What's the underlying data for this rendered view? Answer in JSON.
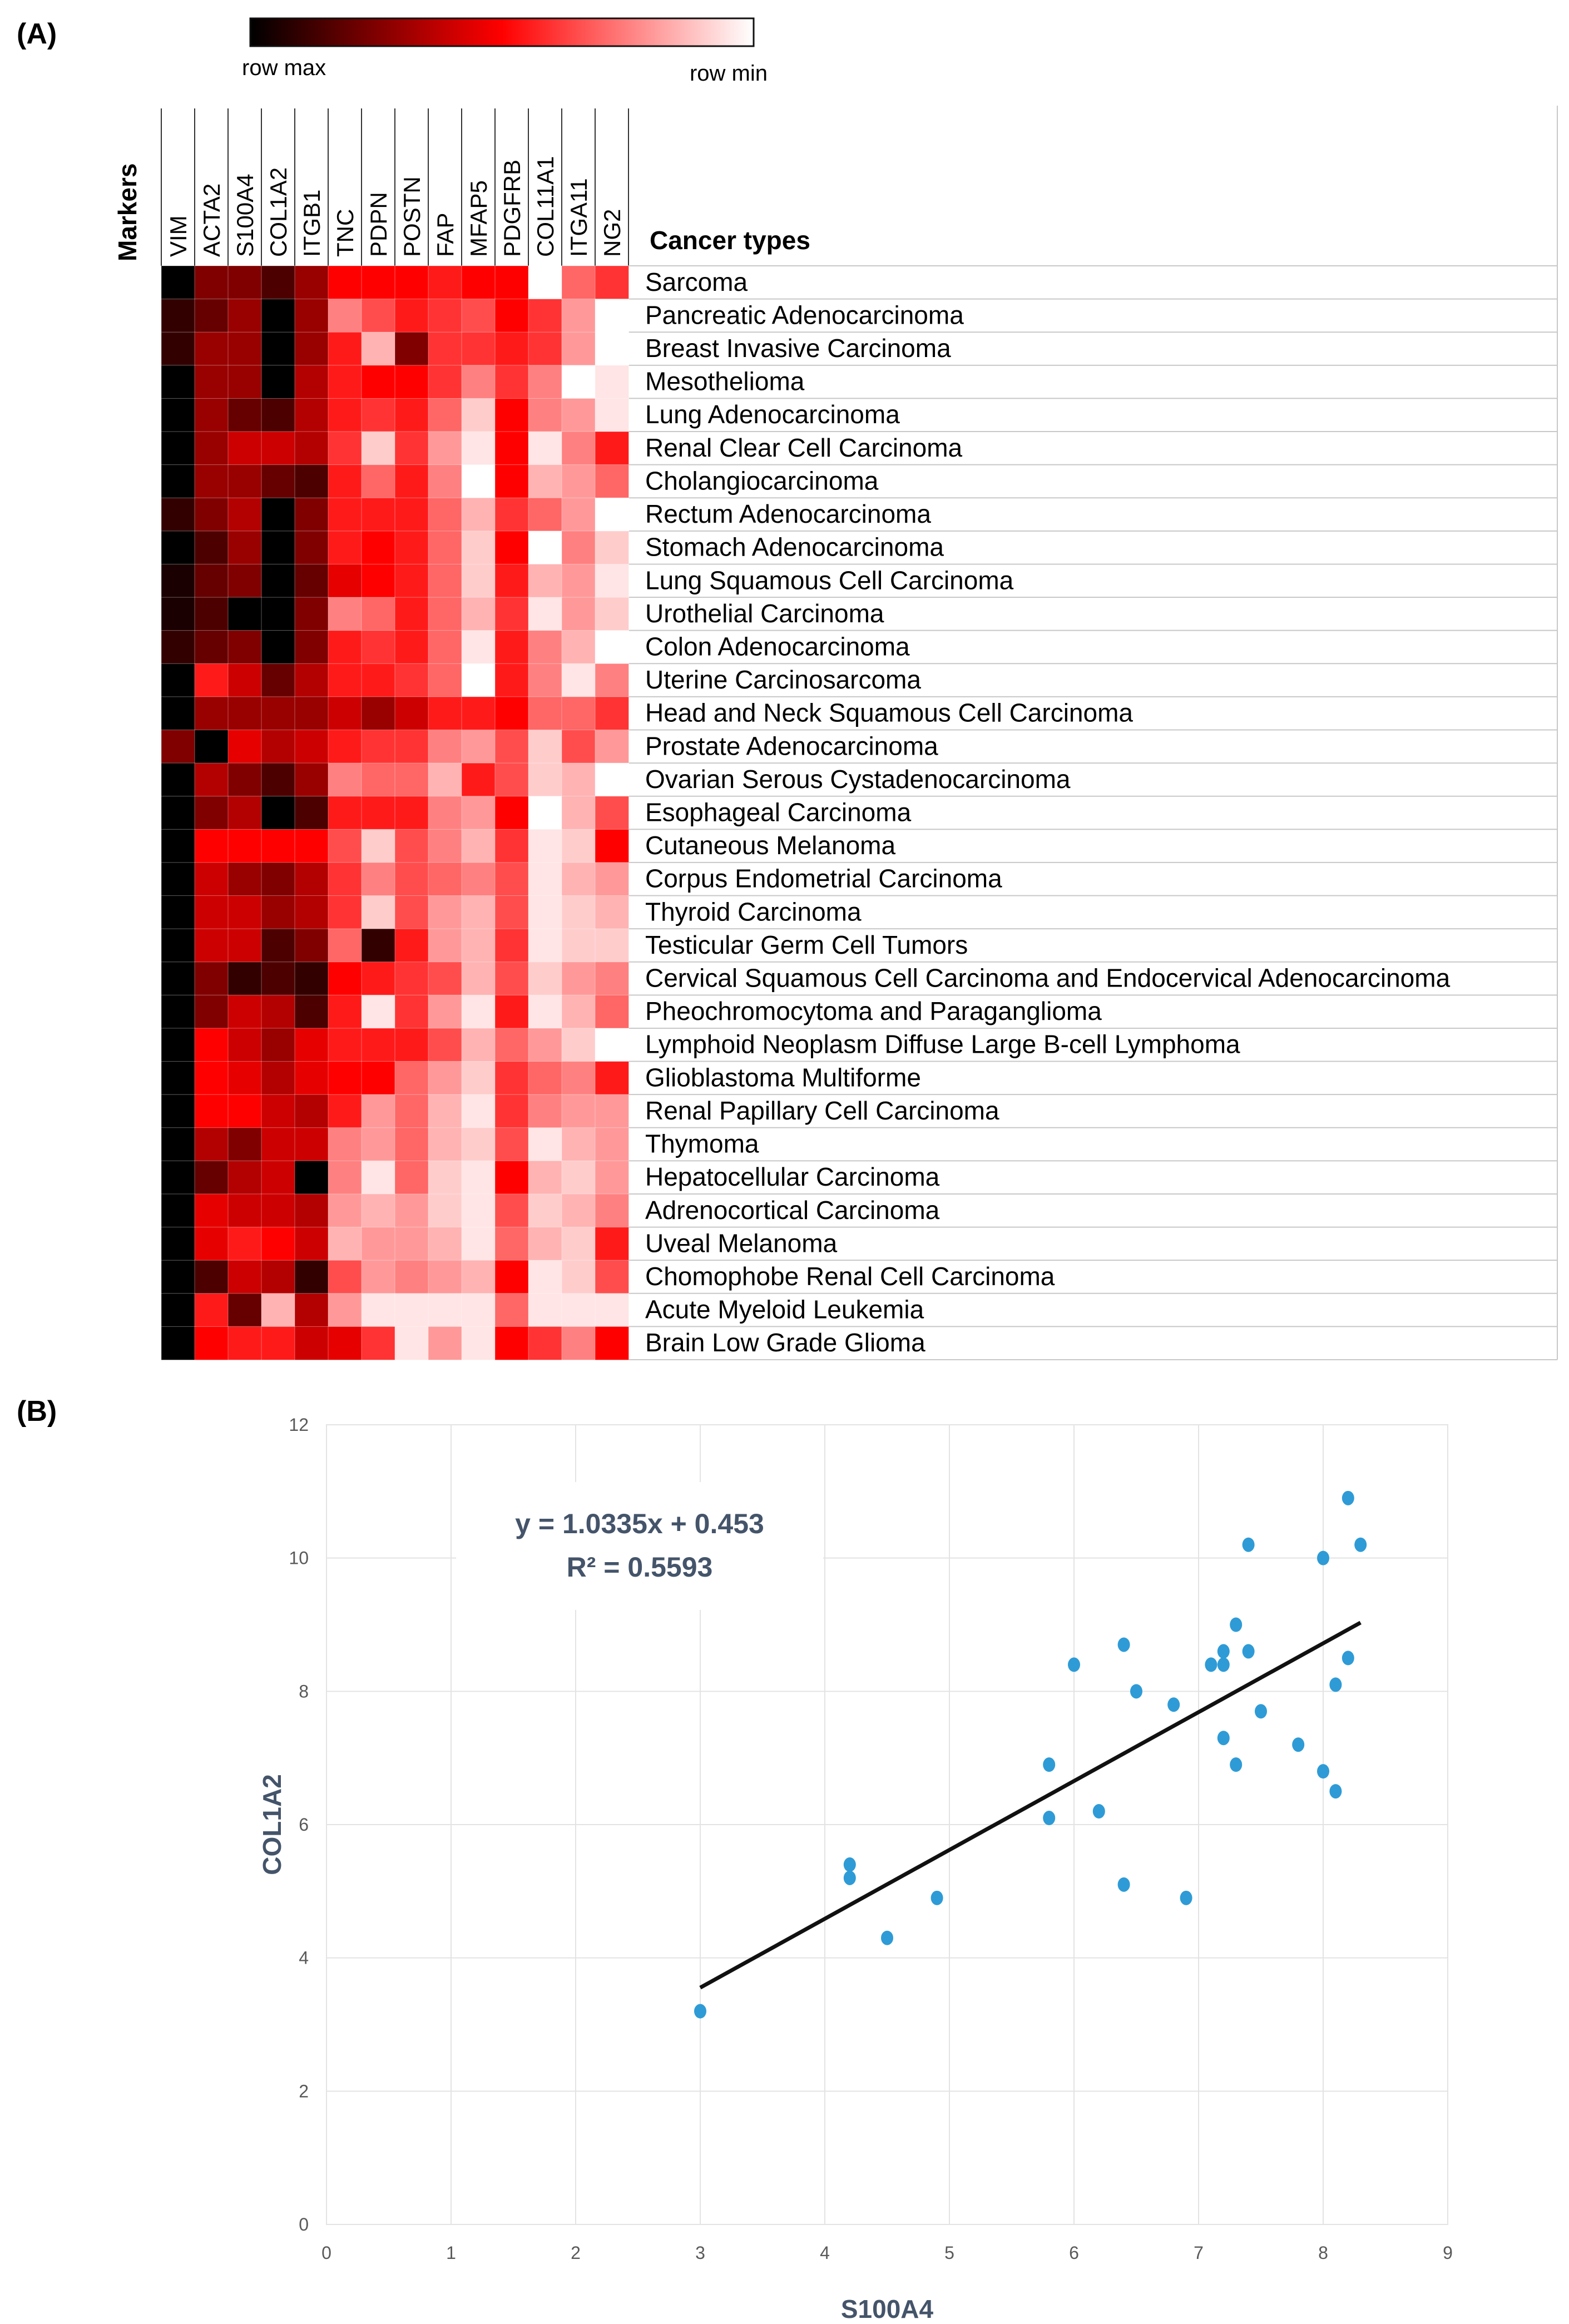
{
  "panel_a": {
    "label": "(A)",
    "colorbar": {
      "max_label": "row max",
      "min_label": "row min",
      "colors": [
        "#000000",
        "#ff0000",
        "#ffffff"
      ]
    },
    "markers_title": "Markers",
    "cancer_types_title": "Cancer types"
  },
  "panel_b": {
    "label": "(B)"
  },
  "chart_data": [
    {
      "type": "heatmap",
      "columns": [
        "VIM",
        "ACTA2",
        "S100A4",
        "COL1A2",
        "ITGB1",
        "TNC",
        "PDPN",
        "POSTN",
        "FAP",
        "MFAP5",
        "PDGFRB",
        "COL11A1",
        "ITGA11",
        "NG2"
      ],
      "rows": [
        "Sarcoma",
        "Pancreatic Adenocarcinoma",
        "Breast Invasive Carcinoma",
        "Mesothelioma",
        "Lung Adenocarcinoma",
        "Renal Clear Cell Carcinoma",
        "Cholangiocarcinoma",
        "Rectum Adenocarcinoma",
        "Stomach Adenocarcinoma",
        "Lung Squamous Cell Carcinoma",
        "Urothelial Carcinoma",
        "Colon Adenocarcinoma",
        "Uterine Carcinosarcoma",
        "Head and Neck Squamous Cell Carcinoma",
        "Prostate Adenocarcinoma",
        "Ovarian Serous Cystadenocarcinoma",
        "Esophageal Carcinoma",
        "Cutaneous Melanoma",
        "Corpus Endometrial Carcinoma",
        "Thyroid Carcinoma",
        "Testicular Germ Cell Tumors",
        "Cervical Squamous Cell Carcinoma and Endocervical Adenocarcinoma",
        "Pheochromocytoma and Paraganglioma",
        "Lymphoid Neoplasm Diffuse Large B-cell Lymphoma",
        "Glioblastoma Multiforme",
        "Renal Papillary Cell Carcinoma",
        "Thymoma",
        "Hepatocellular Carcinoma",
        "Adrenocortical Carcinoma",
        "Uveal Melanoma",
        "Chomophobe Renal Cell Carcinoma",
        "Acute Myeloid Leukemia",
        "Brain Low Grade Glioma"
      ],
      "scale": "row-normalized, 0 = row max (black), 0.5 = red, 1 = row min (white)",
      "values": [
        [
          0.0,
          0.25,
          0.25,
          0.15,
          0.3,
          0.5,
          0.5,
          0.5,
          0.55,
          0.5,
          0.5,
          1.0,
          0.7,
          0.6
        ],
        [
          0.1,
          0.2,
          0.3,
          0.0,
          0.3,
          0.75,
          0.65,
          0.55,
          0.6,
          0.65,
          0.5,
          0.6,
          0.8,
          1.0
        ],
        [
          0.1,
          0.3,
          0.3,
          0.0,
          0.3,
          0.55,
          0.85,
          0.25,
          0.6,
          0.6,
          0.55,
          0.6,
          0.8,
          1.0
        ],
        [
          0.0,
          0.3,
          0.3,
          0.0,
          0.35,
          0.55,
          0.5,
          0.5,
          0.6,
          0.75,
          0.6,
          0.75,
          1.0,
          0.95
        ],
        [
          0.0,
          0.3,
          0.2,
          0.15,
          0.35,
          0.55,
          0.6,
          0.55,
          0.7,
          0.9,
          0.5,
          0.75,
          0.8,
          0.95
        ],
        [
          0.0,
          0.3,
          0.4,
          0.4,
          0.35,
          0.6,
          0.9,
          0.6,
          0.8,
          0.95,
          0.5,
          0.95,
          0.75,
          0.55
        ],
        [
          0.0,
          0.3,
          0.3,
          0.2,
          0.15,
          0.55,
          0.7,
          0.55,
          0.75,
          1.0,
          0.5,
          0.85,
          0.8,
          0.7
        ],
        [
          0.1,
          0.25,
          0.35,
          0.0,
          0.25,
          0.55,
          0.55,
          0.55,
          0.7,
          0.85,
          0.6,
          0.7,
          0.8,
          1.0
        ],
        [
          0.0,
          0.15,
          0.3,
          0.0,
          0.25,
          0.55,
          0.5,
          0.55,
          0.7,
          0.9,
          0.5,
          1.0,
          0.75,
          0.9
        ],
        [
          0.05,
          0.2,
          0.25,
          0.0,
          0.2,
          0.45,
          0.5,
          0.55,
          0.7,
          0.9,
          0.55,
          0.85,
          0.8,
          0.95
        ],
        [
          0.05,
          0.15,
          0.0,
          0.0,
          0.25,
          0.75,
          0.7,
          0.55,
          0.7,
          0.85,
          0.6,
          0.95,
          0.8,
          0.9
        ],
        [
          0.1,
          0.2,
          0.25,
          0.0,
          0.25,
          0.55,
          0.6,
          0.55,
          0.7,
          0.95,
          0.55,
          0.75,
          0.85,
          1.0
        ],
        [
          0.0,
          0.55,
          0.4,
          0.2,
          0.35,
          0.55,
          0.55,
          0.6,
          0.7,
          1.0,
          0.55,
          0.75,
          0.95,
          0.75
        ],
        [
          0.0,
          0.3,
          0.3,
          0.3,
          0.3,
          0.4,
          0.3,
          0.4,
          0.55,
          0.55,
          0.5,
          0.7,
          0.7,
          0.6
        ],
        [
          0.25,
          0.0,
          0.45,
          0.35,
          0.4,
          0.55,
          0.6,
          0.6,
          0.75,
          0.8,
          0.65,
          0.9,
          0.65,
          0.8
        ],
        [
          0.0,
          0.35,
          0.25,
          0.15,
          0.3,
          0.75,
          0.7,
          0.7,
          0.85,
          0.55,
          0.65,
          0.9,
          0.85,
          1.0
        ],
        [
          0.0,
          0.25,
          0.35,
          0.0,
          0.15,
          0.55,
          0.55,
          0.55,
          0.75,
          0.8,
          0.5,
          1.0,
          0.85,
          0.65
        ],
        [
          0.0,
          0.5,
          0.5,
          0.5,
          0.5,
          0.65,
          0.9,
          0.65,
          0.75,
          0.85,
          0.6,
          0.95,
          0.9,
          0.5
        ],
        [
          0.0,
          0.4,
          0.3,
          0.25,
          0.35,
          0.6,
          0.75,
          0.65,
          0.7,
          0.75,
          0.65,
          0.95,
          0.85,
          0.8
        ],
        [
          0.0,
          0.4,
          0.4,
          0.3,
          0.35,
          0.6,
          0.9,
          0.65,
          0.8,
          0.85,
          0.65,
          0.95,
          0.9,
          0.85
        ],
        [
          0.0,
          0.4,
          0.4,
          0.15,
          0.25,
          0.7,
          0.1,
          0.55,
          0.8,
          0.85,
          0.6,
          0.95,
          0.9,
          0.9
        ],
        [
          0.0,
          0.25,
          0.1,
          0.15,
          0.1,
          0.5,
          0.55,
          0.6,
          0.65,
          0.85,
          0.65,
          0.9,
          0.8,
          0.75
        ],
        [
          0.0,
          0.25,
          0.4,
          0.35,
          0.15,
          0.55,
          0.95,
          0.6,
          0.8,
          0.95,
          0.55,
          0.95,
          0.85,
          0.7
        ],
        [
          0.0,
          0.5,
          0.4,
          0.3,
          0.45,
          0.55,
          0.55,
          0.55,
          0.65,
          0.85,
          0.7,
          0.8,
          0.9,
          1.0
        ],
        [
          0.0,
          0.5,
          0.45,
          0.35,
          0.45,
          0.5,
          0.5,
          0.7,
          0.8,
          0.9,
          0.6,
          0.7,
          0.75,
          0.55
        ],
        [
          0.0,
          0.5,
          0.5,
          0.4,
          0.35,
          0.55,
          0.8,
          0.7,
          0.85,
          0.95,
          0.6,
          0.75,
          0.8,
          0.8
        ],
        [
          0.0,
          0.35,
          0.25,
          0.4,
          0.4,
          0.75,
          0.8,
          0.7,
          0.85,
          0.9,
          0.65,
          0.95,
          0.85,
          0.8
        ],
        [
          0.0,
          0.2,
          0.35,
          0.4,
          0.0,
          0.75,
          0.95,
          0.7,
          0.9,
          0.95,
          0.5,
          0.85,
          0.9,
          0.8
        ],
        [
          0.0,
          0.45,
          0.4,
          0.4,
          0.35,
          0.8,
          0.85,
          0.8,
          0.9,
          0.95,
          0.65,
          0.9,
          0.85,
          0.75
        ],
        [
          0.0,
          0.45,
          0.55,
          0.5,
          0.4,
          0.85,
          0.8,
          0.8,
          0.85,
          0.95,
          0.7,
          0.85,
          0.9,
          0.55
        ],
        [
          0.0,
          0.15,
          0.4,
          0.35,
          0.1,
          0.65,
          0.8,
          0.75,
          0.8,
          0.85,
          0.5,
          0.95,
          0.9,
          0.65
        ],
        [
          0.0,
          0.55,
          0.2,
          0.85,
          0.35,
          0.8,
          0.95,
          0.95,
          0.95,
          0.95,
          0.7,
          0.95,
          0.95,
          0.95
        ],
        [
          0.0,
          0.5,
          0.55,
          0.55,
          0.4,
          0.45,
          0.6,
          0.95,
          0.8,
          0.95,
          0.5,
          0.6,
          0.75,
          0.5
        ]
      ]
    },
    {
      "type": "scatter",
      "xlabel": "S100A4",
      "ylabel": "COL1A2",
      "xlim": [
        0,
        9
      ],
      "ylim": [
        0,
        12
      ],
      "x_ticks": [
        0,
        1,
        2,
        3,
        4,
        5,
        6,
        7,
        8,
        9
      ],
      "y_ticks": [
        0,
        2,
        4,
        6,
        8,
        10,
        12
      ],
      "grid": true,
      "point_color": "#2e9bd6",
      "trendline": {
        "slope": 1.0335,
        "intercept": 0.453,
        "x_range": [
          3,
          8.3
        ],
        "equation": "y = 1.0335x + 0.453",
        "r2": "R² = 0.5593",
        "color": "#111111"
      },
      "points": [
        {
          "x": 3.0,
          "y": 3.2
        },
        {
          "x": 4.2,
          "y": 5.4
        },
        {
          "x": 4.2,
          "y": 5.2
        },
        {
          "x": 4.5,
          "y": 4.3
        },
        {
          "x": 4.9,
          "y": 4.9
        },
        {
          "x": 5.8,
          "y": 6.9
        },
        {
          "x": 5.8,
          "y": 6.1
        },
        {
          "x": 6.0,
          "y": 8.4
        },
        {
          "x": 6.2,
          "y": 6.2
        },
        {
          "x": 6.4,
          "y": 8.7
        },
        {
          "x": 6.4,
          "y": 5.1
        },
        {
          "x": 6.5,
          "y": 8.0
        },
        {
          "x": 6.8,
          "y": 7.8
        },
        {
          "x": 6.9,
          "y": 4.9
        },
        {
          "x": 7.1,
          "y": 8.4
        },
        {
          "x": 7.2,
          "y": 8.4
        },
        {
          "x": 7.2,
          "y": 8.6
        },
        {
          "x": 7.2,
          "y": 7.3
        },
        {
          "x": 7.3,
          "y": 9.0
        },
        {
          "x": 7.3,
          "y": 6.9
        },
        {
          "x": 7.4,
          "y": 10.2
        },
        {
          "x": 7.4,
          "y": 8.6
        },
        {
          "x": 7.5,
          "y": 7.7
        },
        {
          "x": 7.8,
          "y": 7.2
        },
        {
          "x": 8.0,
          "y": 10.0
        },
        {
          "x": 8.0,
          "y": 6.8
        },
        {
          "x": 8.1,
          "y": 8.1
        },
        {
          "x": 8.1,
          "y": 6.5
        },
        {
          "x": 8.2,
          "y": 10.9
        },
        {
          "x": 8.2,
          "y": 8.5
        },
        {
          "x": 8.3,
          "y": 10.2
        }
      ]
    }
  ]
}
